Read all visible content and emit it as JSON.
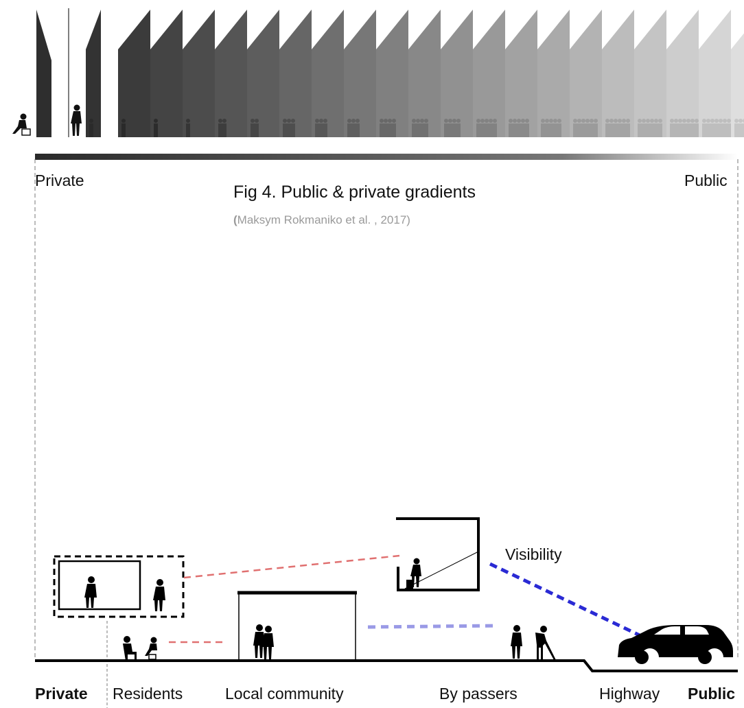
{
  "figure": {
    "label": "Fig 4.",
    "title": "Public & private gradients",
    "source_open": "(",
    "source_text": "Maksym Rokmaniko et al. , 2017)"
  },
  "gradient": {
    "left_label": "Private",
    "right_label": "Public",
    "panel_count": 22,
    "dark_color": "#2a2a2a",
    "light_color": "#efefef"
  },
  "section": {
    "left_label": "Private",
    "right_label": "Public",
    "zones": [
      "Residents",
      "Local community",
      "By passers",
      "Highway"
    ],
    "visibility_label": "Visibility",
    "red_line_color": "#e07070",
    "lavender_line_color": "#9a9ae6",
    "blue_line_color": "#2a2ad4"
  }
}
